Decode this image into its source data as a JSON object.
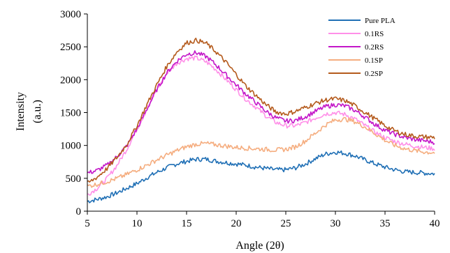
{
  "chart_data": {
    "type": "line",
    "title": "",
    "xlabel": "Angle (2θ)",
    "ylabel": "Intensity",
    "ylabel_unit": "(a.u.)",
    "xlim": [
      5,
      40
    ],
    "ylim": [
      0,
      3000
    ],
    "x_ticks": [
      5,
      10,
      15,
      20,
      25,
      30,
      35,
      40
    ],
    "y_ticks": [
      0,
      500,
      1000,
      1500,
      2000,
      2500,
      3000
    ],
    "grid": false,
    "legend_position": "top-right",
    "x": [
      5,
      6,
      7,
      8,
      9,
      10,
      11,
      12,
      13,
      14,
      15,
      16,
      17,
      18,
      19,
      20,
      21,
      22,
      23,
      24,
      25,
      26,
      27,
      28,
      29,
      30,
      31,
      32,
      33,
      34,
      35,
      36,
      37,
      38,
      39,
      40
    ],
    "series": [
      {
        "name": "Pure PLA",
        "color": "#1f6fb5",
        "values": [
          150,
          180,
          220,
          280,
          350,
          420,
          510,
          590,
          660,
          720,
          760,
          790,
          790,
          760,
          740,
          720,
          700,
          670,
          650,
          630,
          630,
          660,
          720,
          800,
          870,
          900,
          880,
          840,
          780,
          720,
          670,
          630,
          600,
          590,
          580,
          570
        ]
      },
      {
        "name": "0.1RS",
        "color": "#ff8fe8",
        "values": [
          250,
          350,
          500,
          700,
          950,
          1250,
          1550,
          1850,
          2100,
          2250,
          2320,
          2330,
          2270,
          2150,
          2000,
          1850,
          1700,
          1580,
          1450,
          1350,
          1300,
          1300,
          1350,
          1420,
          1480,
          1500,
          1470,
          1400,
          1300,
          1200,
          1120,
          1060,
          1020,
          990,
          970,
          950
        ]
      },
      {
        "name": "0.2RS",
        "color": "#c316c8",
        "values": [
          580,
          620,
          700,
          830,
          1000,
          1250,
          1550,
          1850,
          2100,
          2280,
          2390,
          2410,
          2350,
          2220,
          2070,
          1920,
          1780,
          1650,
          1520,
          1420,
          1370,
          1380,
          1440,
          1520,
          1590,
          1620,
          1600,
          1530,
          1430,
          1320,
          1230,
          1170,
          1120,
          1090,
          1070,
          1050
        ]
      },
      {
        "name": "0.1SP",
        "color": "#f5ad7f",
        "values": [
          380,
          410,
          450,
          500,
          560,
          630,
          700,
          780,
          850,
          920,
          980,
          1020,
          1030,
          1010,
          990,
          970,
          960,
          950,
          940,
          930,
          940,
          980,
          1070,
          1190,
          1310,
          1390,
          1400,
          1360,
          1280,
          1180,
          1080,
          1000,
          950,
          920,
          900,
          890
        ]
      },
      {
        "name": "0.2SP",
        "color": "#b45a1c",
        "values": [
          420,
          520,
          650,
          820,
          1020,
          1300,
          1620,
          1920,
          2200,
          2420,
          2560,
          2600,
          2550,
          2420,
          2260,
          2080,
          1900,
          1760,
          1620,
          1510,
          1480,
          1520,
          1580,
          1640,
          1690,
          1710,
          1680,
          1600,
          1500,
          1400,
          1300,
          1220,
          1170,
          1140,
          1130,
          1120
        ]
      }
    ]
  }
}
